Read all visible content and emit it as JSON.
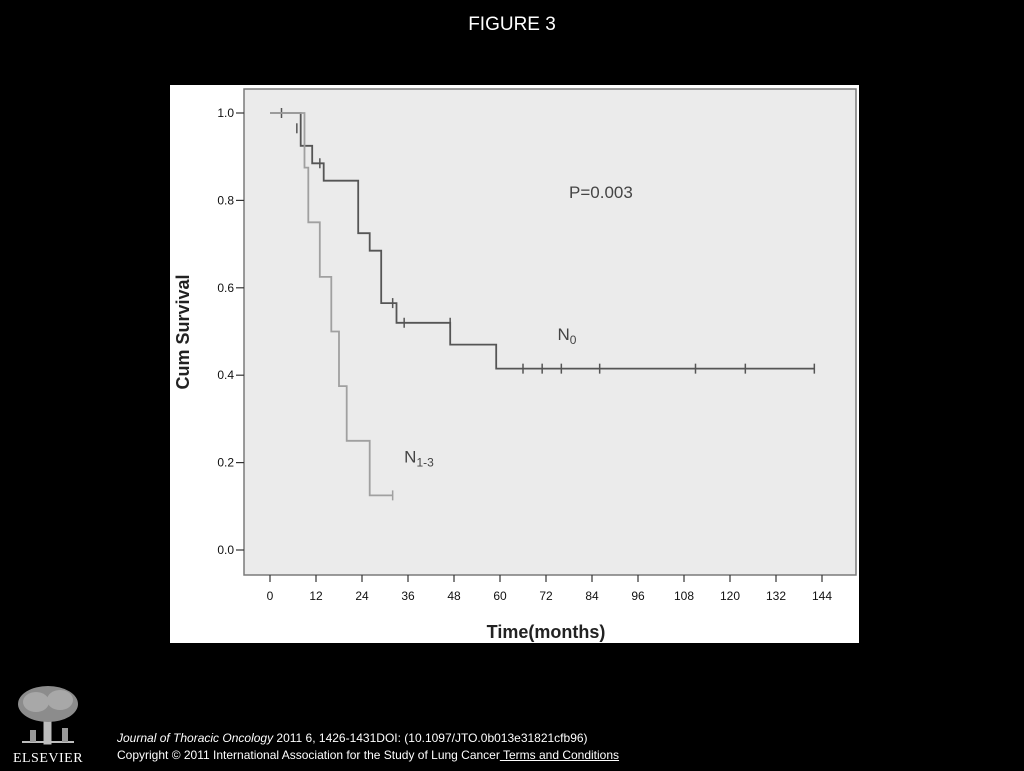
{
  "slide": {
    "title": "FIGURE 3"
  },
  "chart_data": {
    "type": "line",
    "subtype": "kaplan-meier",
    "title": "",
    "xlabel": "Time(months)",
    "ylabel": "Cum Survival",
    "xlim": [
      0,
      144
    ],
    "ylim": [
      0,
      1.0
    ],
    "x_ticks": [
      "0",
      "12",
      "24",
      "36",
      "48",
      "60",
      "72",
      "84",
      "96",
      "108",
      "120",
      "132",
      "144"
    ],
    "y_ticks": [
      "0.0",
      "0.2",
      "0.4",
      "0.6",
      "0.8",
      "1.0"
    ],
    "grid": false,
    "annotations": [
      {
        "text": "P=0.003",
        "x": 78,
        "y": 0.805
      }
    ],
    "series": [
      {
        "name": "N0",
        "label_main": "N",
        "label_sub": "0",
        "label_at": {
          "x": 75,
          "y": 0.48
        },
        "color": "#555555",
        "steps": [
          [
            0,
            1.0
          ],
          [
            8,
            1.0
          ],
          [
            8,
            0.925
          ],
          [
            11,
            0.925
          ],
          [
            11,
            0.885
          ],
          [
            14,
            0.885
          ],
          [
            14,
            0.845
          ],
          [
            23,
            0.845
          ],
          [
            23,
            0.725
          ],
          [
            26,
            0.725
          ],
          [
            26,
            0.685
          ],
          [
            29,
            0.685
          ],
          [
            29,
            0.565
          ],
          [
            33,
            0.565
          ],
          [
            33,
            0.52
          ],
          [
            47,
            0.52
          ],
          [
            47,
            0.47
          ],
          [
            59,
            0.47
          ],
          [
            59,
            0.415
          ],
          [
            142,
            0.415
          ]
        ],
        "censored": [
          [
            3,
            1.0
          ],
          [
            7,
            0.965
          ],
          [
            13,
            0.885
          ],
          [
            32,
            0.565
          ],
          [
            35,
            0.52
          ],
          [
            47,
            0.52
          ],
          [
            66,
            0.415
          ],
          [
            71,
            0.415
          ],
          [
            76,
            0.415
          ],
          [
            86,
            0.415
          ],
          [
            111,
            0.415
          ],
          [
            124,
            0.415
          ],
          [
            142,
            0.415
          ]
        ]
      },
      {
        "name": "N1-3",
        "label_main": "N",
        "label_sub": "1-3",
        "label_at": {
          "x": 35,
          "y": 0.2
        },
        "color": "#a0a0a0",
        "steps": [
          [
            0,
            1.0
          ],
          [
            9,
            1.0
          ],
          [
            9,
            0.875
          ],
          [
            10,
            0.875
          ],
          [
            10,
            0.75
          ],
          [
            13,
            0.75
          ],
          [
            13,
            0.625
          ],
          [
            16,
            0.625
          ],
          [
            16,
            0.5
          ],
          [
            18,
            0.5
          ],
          [
            18,
            0.375
          ],
          [
            20,
            0.375
          ],
          [
            20,
            0.25
          ],
          [
            26,
            0.25
          ],
          [
            26,
            0.125
          ],
          [
            32,
            0.125
          ]
        ],
        "censored": [
          [
            32,
            0.125
          ]
        ]
      }
    ]
  },
  "footer": {
    "journal": "Journal of Thoracic Oncology",
    "citation": " 2011 6, 1426-1431DOI: (10.1097/JTO.0b013e31821cfb96)",
    "copyright": "Copyright © 2011 International Association for the Study of Lung Cancer",
    "terms_link": " Terms and Conditions"
  },
  "publisher": {
    "name": "ELSEVIER",
    "logo_icon": "elsevier-tree-icon"
  }
}
